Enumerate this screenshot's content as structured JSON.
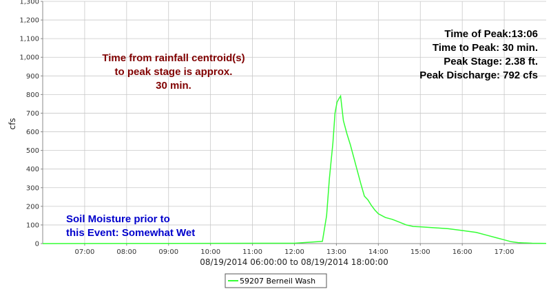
{
  "chart_data": {
    "type": "line",
    "title": "",
    "xlabel": "08/19/2014 06:00:00 to 08/19/2014 18:00:00",
    "ylabel": "cfs",
    "xlim": [
      "06:00",
      "18:00"
    ],
    "ylim": [
      0,
      1300
    ],
    "x_ticks": [
      "07:00",
      "08:00",
      "09:00",
      "10:00",
      "11:00",
      "12:00",
      "13:00",
      "14:00",
      "15:00",
      "16:00",
      "17:00"
    ],
    "y_ticks": [
      "0",
      "100",
      "200",
      "300",
      "400",
      "500",
      "600",
      "700",
      "800",
      "900",
      "1,000",
      "1,100",
      "1,200",
      "1,300"
    ],
    "grid": true,
    "legend_position": "bottom-center",
    "series": [
      {
        "name": "59207 Berneil Wash",
        "color": "#33ff33",
        "x": [
          "06:00",
          "12:00",
          "12:40",
          "12:46",
          "12:50",
          "12:55",
          "12:58",
          "13:01",
          "13:04",
          "13:06",
          "13:10",
          "13:15",
          "13:20",
          "13:25",
          "13:30",
          "13:35",
          "13:40",
          "13:45",
          "13:50",
          "13:55",
          "14:00",
          "14:10",
          "14:20",
          "14:30",
          "14:40",
          "14:50",
          "15:00",
          "15:20",
          "15:40",
          "16:00",
          "16:20",
          "16:35",
          "16:50",
          "17:00",
          "17:10",
          "17:20",
          "17:40",
          "18:00"
        ],
        "y": [
          0,
          2,
          12,
          150,
          350,
          540,
          700,
          760,
          780,
          792,
          660,
          590,
          530,
          460,
          390,
          320,
          255,
          235,
          205,
          180,
          160,
          140,
          130,
          115,
          100,
          92,
          90,
          85,
          80,
          70,
          60,
          45,
          30,
          20,
          10,
          5,
          2,
          1
        ]
      }
    ],
    "annotations": {
      "peak_lines": [
        "Time of Peak:13:06",
        "Time to Peak: 30 min.",
        "Peak Stage: 2.38 ft.",
        "Peak Discharge: 792 cfs"
      ],
      "centroid_lines": [
        "Time from rainfall centroid(s)",
        "to peak stage is approx.",
        "30 min."
      ],
      "soil_lines": [
        "Soil Moisture prior to",
        "this Event: Somewhat Wet"
      ]
    }
  },
  "colors": {
    "peak_text": "#000000",
    "centroid_text": "#800000",
    "soil_text": "#0000cc",
    "grid": "#c8c8c8",
    "axis": "#888888"
  }
}
